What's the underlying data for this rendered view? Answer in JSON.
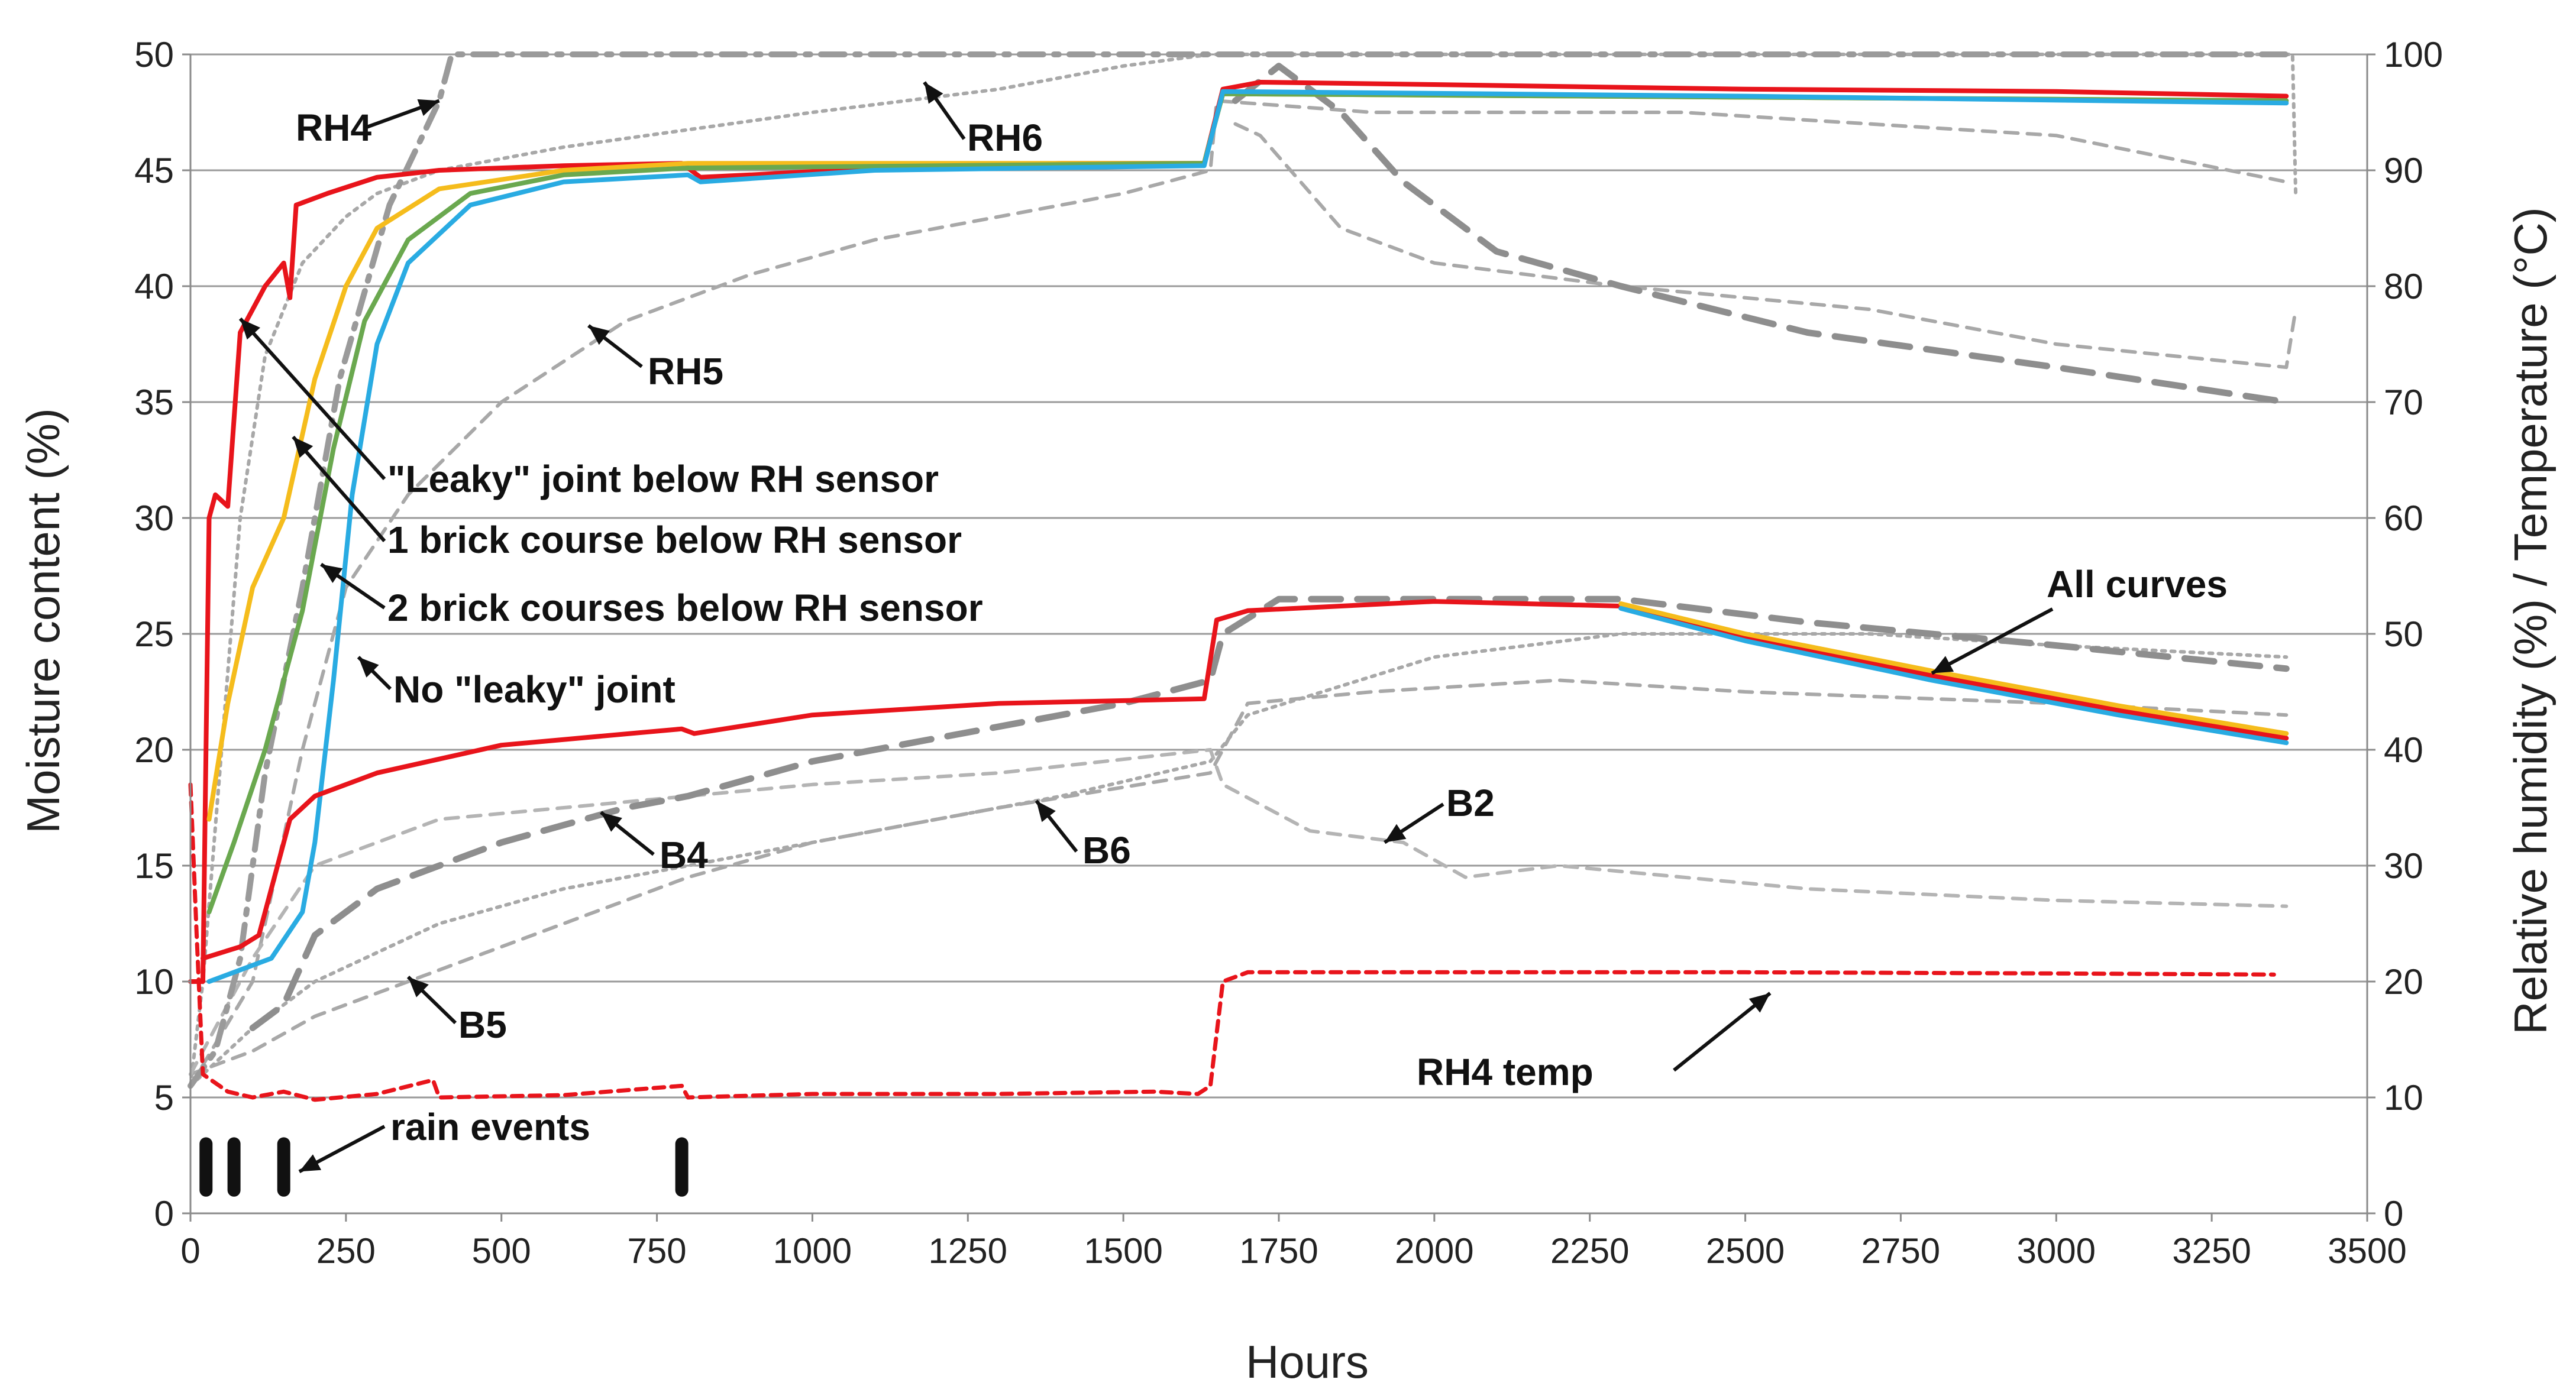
{
  "chart_data": {
    "type": "line",
    "title": "",
    "xlabel": "Hours",
    "ylabel_left": "Moisture content (%)",
    "ylabel_right": "Relative humidity (%) / Temperature (°C)",
    "xlim": [
      0,
      3500
    ],
    "ylim_left": [
      0,
      50
    ],
    "ylim_right": [
      0,
      100
    ],
    "grid": "horizontal",
    "x_ticks": [
      "0",
      "250",
      "500",
      "750",
      "1000",
      "1250",
      "1500",
      "1750",
      "2000",
      "2250",
      "2500",
      "2750",
      "3000",
      "3250",
      "3500"
    ],
    "y_ticks_left": [
      "0",
      "5",
      "10",
      "15",
      "20",
      "25",
      "30",
      "35",
      "40",
      "45",
      "50"
    ],
    "y_ticks_right": [
      "0",
      "10",
      "20",
      "30",
      "40",
      "50",
      "60",
      "70",
      "80",
      "90",
      "100"
    ],
    "series": [
      {
        "name": "RH4",
        "axis": "right",
        "color": "#9a9a9a",
        "style": "dash-dot",
        "points": [
          [
            0,
            11
          ],
          [
            40,
            14
          ],
          [
            80,
            22
          ],
          [
            120,
            38
          ],
          [
            180,
            54
          ],
          [
            240,
            72
          ],
          [
            320,
            87
          ],
          [
            400,
            96
          ],
          [
            420,
            100
          ],
          [
            3380,
            100
          ]
        ]
      },
      {
        "name": "RH6",
        "axis": "right",
        "color": "#a8a8a8",
        "style": "dotted",
        "points": [
          [
            0,
            11
          ],
          [
            20,
            20
          ],
          [
            50,
            40
          ],
          [
            80,
            60
          ],
          [
            120,
            74
          ],
          [
            180,
            82
          ],
          [
            250,
            86
          ],
          [
            300,
            88
          ],
          [
            400,
            90
          ],
          [
            600,
            92
          ],
          [
            1000,
            95
          ],
          [
            1300,
            97
          ],
          [
            1500,
            99
          ],
          [
            1640,
            100
          ],
          [
            3380,
            100
          ],
          [
            3385,
            88
          ]
        ]
      },
      {
        "name": "RH5",
        "axis": "right",
        "color": "#a8a8a8",
        "style": "dashed",
        "points": [
          [
            0,
            11
          ],
          [
            100,
            20
          ],
          [
            180,
            40
          ],
          [
            250,
            54
          ],
          [
            350,
            62
          ],
          [
            500,
            70
          ],
          [
            700,
            77
          ],
          [
            900,
            81
          ],
          [
            1100,
            84
          ],
          [
            1300,
            86
          ],
          [
            1500,
            88
          ],
          [
            1640,
            90
          ],
          [
            1650,
            96
          ],
          [
            1900,
            95
          ],
          [
            2400,
            95
          ],
          [
            3000,
            93
          ],
          [
            3370,
            89
          ]
        ]
      },
      {
        "name": "RH4 (lower dashed)",
        "axis": "right",
        "color": "#8e8e8e",
        "style": "long-dash",
        "points": [
          [
            1680,
            96
          ],
          [
            1750,
            99
          ],
          [
            1850,
            95
          ],
          [
            1950,
            89
          ],
          [
            2100,
            83
          ],
          [
            2300,
            80
          ],
          [
            2600,
            76
          ],
          [
            3000,
            73
          ],
          [
            3370,
            70
          ]
        ]
      },
      {
        "name": "RH5 (decay)",
        "axis": "right",
        "color": "#a8a8a8",
        "style": "dashed",
        "points": [
          [
            1680,
            94
          ],
          [
            1720,
            93
          ],
          [
            1850,
            85
          ],
          [
            2000,
            82
          ],
          [
            2300,
            80
          ],
          [
            2700,
            78
          ],
          [
            3000,
            75
          ],
          [
            3370,
            73
          ],
          [
            3385,
            78
          ]
        ]
      },
      {
        "name": "\"Leaky\" joint below RH sensor",
        "axis": "left",
        "color": "#e8141b",
        "style": "solid",
        "points": [
          [
            0,
            10
          ],
          [
            20,
            10
          ],
          [
            30,
            30
          ],
          [
            40,
            31
          ],
          [
            60,
            30.5
          ],
          [
            80,
            38
          ],
          [
            120,
            40
          ],
          [
            150,
            41
          ],
          [
            160,
            39.5
          ],
          [
            170,
            43.5
          ],
          [
            220,
            44
          ],
          [
            300,
            44.7
          ],
          [
            400,
            45
          ],
          [
            600,
            45.2
          ],
          [
            790,
            45.3
          ],
          [
            820,
            44.7
          ],
          [
            900,
            44.8
          ],
          [
            1100,
            45.1
          ],
          [
            1400,
            45.3
          ],
          [
            1630,
            45.3
          ],
          [
            1660,
            48.5
          ],
          [
            1720,
            48.8
          ],
          [
            2000,
            48.7
          ],
          [
            2500,
            48.5
          ],
          [
            3000,
            48.4
          ],
          [
            3370,
            48.2
          ]
        ]
      },
      {
        "name": "1 brick course below RH sensor",
        "axis": "left",
        "color": "#f5bc1c",
        "style": "solid",
        "points": [
          [
            30,
            17
          ],
          [
            60,
            22
          ],
          [
            100,
            27
          ],
          [
            150,
            30
          ],
          [
            200,
            36
          ],
          [
            250,
            40
          ],
          [
            300,
            42.5
          ],
          [
            400,
            44.2
          ],
          [
            600,
            45
          ],
          [
            800,
            45.3
          ],
          [
            1630,
            45.3
          ],
          [
            1660,
            48.3
          ],
          [
            3370,
            48
          ]
        ]
      },
      {
        "name": "2 brick courses below RH sensor",
        "axis": "left",
        "color": "#6aa84f",
        "style": "solid",
        "points": [
          [
            30,
            13
          ],
          [
            70,
            16
          ],
          [
            120,
            20
          ],
          [
            180,
            26
          ],
          [
            230,
            33
          ],
          [
            280,
            38.5
          ],
          [
            350,
            42
          ],
          [
            450,
            44
          ],
          [
            600,
            44.8
          ],
          [
            800,
            45.1
          ],
          [
            1630,
            45.3
          ],
          [
            1660,
            48.3
          ],
          [
            3370,
            48
          ]
        ]
      },
      {
        "name": "No \"leaky\" joint",
        "axis": "left",
        "color": "#29abe2",
        "style": "solid",
        "points": [
          [
            30,
            10
          ],
          [
            80,
            10.5
          ],
          [
            130,
            11
          ],
          [
            180,
            13
          ],
          [
            200,
            16
          ],
          [
            230,
            23
          ],
          [
            260,
            31
          ],
          [
            300,
            37.5
          ],
          [
            350,
            41
          ],
          [
            450,
            43.5
          ],
          [
            600,
            44.5
          ],
          [
            800,
            44.8
          ],
          [
            820,
            44.5
          ],
          [
            1100,
            45
          ],
          [
            1630,
            45.2
          ],
          [
            1660,
            48.4
          ],
          [
            2500,
            48.2
          ],
          [
            3370,
            47.9
          ]
        ]
      },
      {
        "name": "All curves",
        "axis": "left",
        "color": "#e8141b",
        "style": "solid",
        "points": [
          [
            20,
            11
          ],
          [
            80,
            11.5
          ],
          [
            110,
            12
          ],
          [
            130,
            14
          ],
          [
            160,
            17
          ],
          [
            200,
            18
          ],
          [
            300,
            19
          ],
          [
            500,
            20.2
          ],
          [
            790,
            20.9
          ],
          [
            810,
            20.7
          ],
          [
            1000,
            21.5
          ],
          [
            1300,
            22
          ],
          [
            1630,
            22.2
          ],
          [
            1650,
            25.6
          ],
          [
            1700,
            26
          ],
          [
            2000,
            26.4
          ],
          [
            2300,
            26.2
          ],
          [
            2500,
            24.8
          ],
          [
            2800,
            23.2
          ],
          [
            3100,
            21.7
          ],
          [
            3370,
            20.5
          ]
        ]
      },
      {
        "name": "All curves (yellow)",
        "axis": "left",
        "color": "#f5bc1c",
        "style": "solid",
        "points": [
          [
            2300,
            26.3
          ],
          [
            2500,
            25
          ],
          [
            2800,
            23.4
          ],
          [
            3100,
            21.9
          ],
          [
            3370,
            20.7
          ]
        ]
      },
      {
        "name": "All curves (blue)",
        "axis": "left",
        "color": "#29abe2",
        "style": "solid",
        "points": [
          [
            2300,
            26.1
          ],
          [
            2500,
            24.7
          ],
          [
            2800,
            23.0
          ],
          [
            3100,
            21.5
          ],
          [
            3370,
            20.3
          ]
        ]
      },
      {
        "name": "B4",
        "axis": "right",
        "color": "#8e8e8e",
        "style": "long-dash",
        "points": [
          [
            100,
            16
          ],
          [
            150,
            18
          ],
          [
            200,
            24
          ],
          [
            300,
            28
          ],
          [
            500,
            32
          ],
          [
            700,
            35
          ],
          [
            800,
            36
          ],
          [
            1000,
            39
          ],
          [
            1200,
            41
          ],
          [
            1500,
            44
          ],
          [
            1640,
            46
          ],
          [
            1660,
            50
          ],
          [
            1750,
            53
          ],
          [
            2300,
            53
          ],
          [
            2600,
            51
          ],
          [
            3000,
            49
          ],
          [
            3370,
            47
          ]
        ]
      },
      {
        "name": "B6",
        "axis": "right",
        "color": "#a8a8a8",
        "style": "dotted",
        "points": [
          [
            0,
            11
          ],
          [
            100,
            16
          ],
          [
            200,
            20
          ],
          [
            400,
            25
          ],
          [
            600,
            28
          ],
          [
            800,
            30
          ],
          [
            1000,
            32
          ],
          [
            1200,
            34
          ],
          [
            1400,
            36
          ],
          [
            1640,
            39
          ],
          [
            1700,
            43
          ],
          [
            2000,
            48
          ],
          [
            2300,
            50
          ],
          [
            2700,
            50
          ],
          [
            3000,
            49
          ],
          [
            3370,
            48
          ]
        ]
      },
      {
        "name": "B5",
        "axis": "right",
        "color": "#a8a8a8",
        "style": "dashed",
        "points": [
          [
            0,
            12
          ],
          [
            100,
            14
          ],
          [
            200,
            17
          ],
          [
            400,
            21
          ],
          [
            600,
            25
          ],
          [
            800,
            29
          ],
          [
            1000,
            32
          ],
          [
            1300,
            35
          ],
          [
            1640,
            38
          ],
          [
            1700,
            44
          ],
          [
            1900,
            45
          ],
          [
            2200,
            46
          ],
          [
            2500,
            45
          ],
          [
            3000,
            44
          ],
          [
            3370,
            43
          ]
        ]
      },
      {
        "name": "B2",
        "axis": "right",
        "color": "#b4b4b4",
        "style": "dashed",
        "points": [
          [
            0,
            12
          ],
          [
            100,
            22
          ],
          [
            200,
            30
          ],
          [
            400,
            34
          ],
          [
            600,
            35
          ],
          [
            800,
            36
          ],
          [
            1000,
            37
          ],
          [
            1300,
            38
          ],
          [
            1640,
            40
          ],
          [
            1660,
            37
          ],
          [
            1800,
            33
          ],
          [
            1950,
            32
          ],
          [
            2050,
            29
          ],
          [
            2200,
            30
          ],
          [
            2600,
            28
          ],
          [
            3000,
            27
          ],
          [
            3370,
            26.5
          ]
        ]
      },
      {
        "name": "RH4 temp",
        "axis": "right",
        "color": "#e8141b",
        "style": "short-dash",
        "points": [
          [
            0,
            37
          ],
          [
            10,
            24
          ],
          [
            20,
            12
          ],
          [
            60,
            10.5
          ],
          [
            100,
            10
          ],
          [
            150,
            10.5
          ],
          [
            200,
            9.8
          ],
          [
            300,
            10.3
          ],
          [
            390,
            11.5
          ],
          [
            400,
            10
          ],
          [
            600,
            10.2
          ],
          [
            790,
            11
          ],
          [
            800,
            10
          ],
          [
            1000,
            10.3
          ],
          [
            1300,
            10.3
          ],
          [
            1550,
            10.5
          ],
          [
            1620,
            10.3
          ],
          [
            1640,
            11
          ],
          [
            1660,
            20
          ],
          [
            1700,
            20.8
          ],
          [
            2000,
            20.8
          ],
          [
            2500,
            20.8
          ],
          [
            3000,
            20.7
          ],
          [
            3350,
            20.6
          ]
        ]
      }
    ],
    "rain_events": [
      25,
      70,
      150,
      790
    ],
    "annotations": [
      {
        "text": "RH4",
        "target": [
          400,
          48
        ]
      },
      {
        "text": "RH6",
        "target": [
          1180,
          48.8
        ]
      },
      {
        "text": "RH5",
        "target": [
          640,
          38.3
        ]
      },
      {
        "text": "\"Leaky\" joint below RH sensor",
        "target": [
          80,
          38.6
        ]
      },
      {
        "text": "1 brick course below RH sensor",
        "target": [
          165,
          33.5
        ]
      },
      {
        "text": "2 brick courses below RH sensor",
        "target": [
          210,
          28
        ]
      },
      {
        "text": "No \"leaky\" joint",
        "target": [
          270,
          24
        ]
      },
      {
        "text": "All curves",
        "target": [
          2800,
          23.3
        ]
      },
      {
        "text": "B4",
        "target": [
          660,
          17.3
        ]
      },
      {
        "text": "B6",
        "target": [
          1360,
          17.8
        ]
      },
      {
        "text": "B2",
        "target": [
          1920,
          16
        ]
      },
      {
        "text": "B5",
        "target": [
          350,
          10.2
        ]
      },
      {
        "text": "RH4 temp",
        "target": [
          2540,
          9.5
        ]
      },
      {
        "text": "rain events",
        "target": [
          175,
          1.8
        ]
      }
    ]
  }
}
